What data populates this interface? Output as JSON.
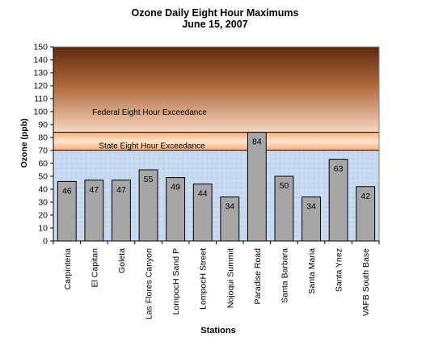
{
  "chart_data": {
    "type": "bar",
    "title": "Ozone Daily Eight Hour Maximums",
    "subtitle": "June 15, 2007",
    "xlabel": "Stations",
    "ylabel": "Ozone (ppb)",
    "ylim": [
      0,
      150
    ],
    "yticks": [
      0,
      10,
      20,
      30,
      40,
      50,
      60,
      70,
      80,
      90,
      100,
      110,
      120,
      130,
      140,
      150
    ],
    "categories": [
      "Carpinteria",
      "El Capitan",
      "Goleta",
      "Las Flores Canyon",
      "LompocH Sand P",
      "LompocH Street",
      "Nojoqui Summit",
      "Paradise Road",
      "Santa Barbara",
      "Santa Maria",
      "Santa Ynez",
      "VAFB South Base"
    ],
    "values": [
      46,
      47,
      47,
      55,
      49,
      44,
      34,
      84,
      50,
      34,
      63,
      42
    ],
    "thresholds": [
      {
        "label": "Federal Eight Hour Exceedance",
        "value": 84
      },
      {
        "label": "State Eight Hour Exceedance",
        "value": 70
      }
    ],
    "grid": false,
    "legend": "none",
    "colors": {
      "bar": "#a6a6a6",
      "band_federal_top": "#5e2a0f",
      "band_federal_bottom": "#f7d7c0",
      "band_state": "#fbc29a",
      "band_clean": "#c6d9f1"
    }
  }
}
